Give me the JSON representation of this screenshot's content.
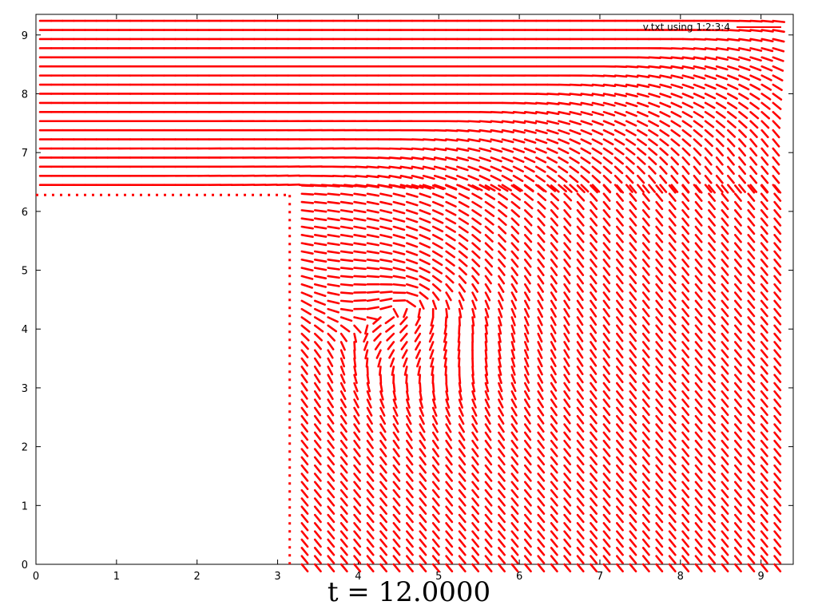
{
  "chart_data": {
    "type": "vector-field",
    "legend": "v.txt using 1:2:3:4",
    "caption": "t = 12.0000",
    "xlim": [
      0,
      9.4
    ],
    "ylim": [
      0,
      9.35
    ],
    "x_ticks": [
      "0",
      "1",
      "2",
      "3",
      "4",
      "5",
      "6",
      "7",
      "8",
      "9"
    ],
    "y_ticks": [
      "0",
      "1",
      "2",
      "3",
      "4",
      "5",
      "6",
      "7",
      "8",
      "9"
    ],
    "series_color": "#ff0000",
    "obstacle": {
      "x": [
        0,
        3.15
      ],
      "y": [
        0,
        6.28
      ]
    },
    "vortex_center": [
      4.7,
      4.5
    ],
    "inflow": "horizontal rows y 6.4–9.3, left to right",
    "outflow": "vertical columns x 3.3–9.3, downward"
  }
}
